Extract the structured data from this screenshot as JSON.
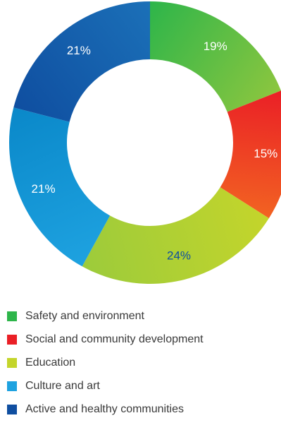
{
  "chart_data": {
    "type": "pie",
    "subtype": "donut",
    "categories": [
      "Safety and environment",
      "Social and community development",
      "Education",
      "Culture and art",
      "Active and healthy communities"
    ],
    "values": [
      19,
      15,
      24,
      21,
      21
    ],
    "labels": [
      "19%",
      "15%",
      "24%",
      "21%",
      "21%"
    ],
    "colors": [
      [
        "#2db54a",
        "#8cc63f"
      ],
      [
        "#ea1f26",
        "#f26322"
      ],
      [
        "#c4d52b",
        "#9ccb3b"
      ],
      [
        "#1ea2e0",
        "#0a88c9"
      ],
      [
        "#0f4ea0",
        "#1b70b8"
      ]
    ],
    "label_colors": [
      "#ffffff",
      "#ffffff",
      "#0f4ea0",
      "#ffffff",
      "#ffffff"
    ],
    "legend_position": "bottom",
    "start_angle_deg": 0,
    "direction": "clockwise"
  }
}
